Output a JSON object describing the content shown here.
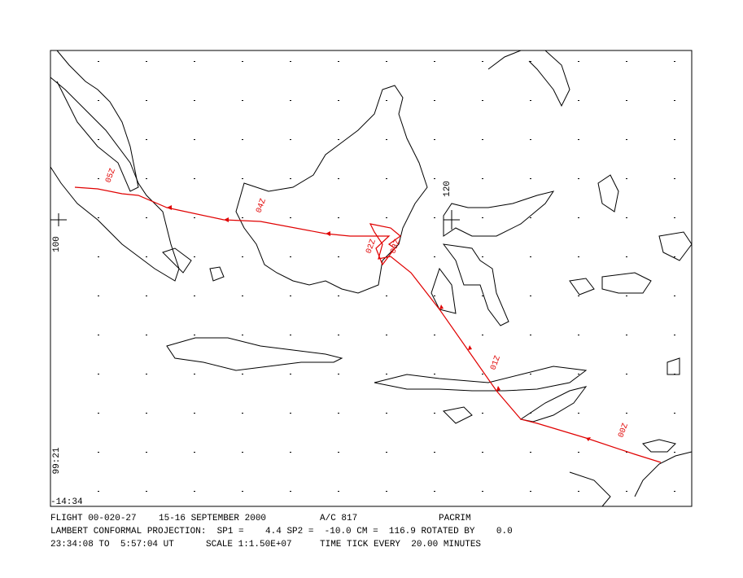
{
  "map": {
    "axis_labels": {
      "lon_left": "100",
      "lon_mid": "120",
      "lat_low": "99:21",
      "lat_bottom": "-14:34"
    },
    "time_labels": [
      "00Z",
      "01Z",
      "02Z",
      "03Z",
      "04Z",
      "05Z"
    ],
    "footer": {
      "line1": [
        "FLIGHT 00-020-27",
        "15-16 SEPTEMBER 2000",
        "A/C 817",
        "PACRIM"
      ],
      "line2": "LAMBERT CONFORMAL PROJECTION:  SP1 =    4.4 SP2 =  -10.0 CM =  116.9 ROTATED BY    0.0",
      "line3": [
        "23:34:08 TO  5:57:04 UT",
        "SCALE 1:1.50E+07",
        "TIME TICK EVERY  20.00 MINUTES"
      ]
    }
  }
}
